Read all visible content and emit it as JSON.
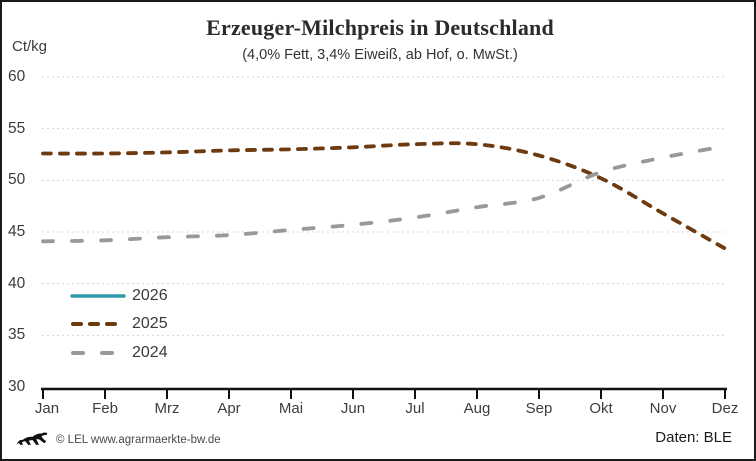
{
  "header": {
    "title": "Erzeuger-Milchpreis in Deutschland",
    "subtitle": "(4,0% Fett, 3,4% Eiweiß, ab Hof, o. MwSt.)",
    "unit_label": "Ct/kg"
  },
  "footer": {
    "copyright": "© LEL www.agrarmaerkte-bw.de",
    "source": "Daten: BLE",
    "logo": "bw-lion-logo"
  },
  "colors": {
    "series_2026": "#2E9BAD",
    "series_2025": "#6E3A0F",
    "series_2024": "#999999",
    "gridline": "#d4d4d4",
    "axis": "#111111",
    "text": "#3d3d3d"
  },
  "chart_data": {
    "type": "line",
    "title": "Erzeuger-Milchpreis in Deutschland",
    "subtitle": "(4,0% Fett, 3,4% Eiweiß, ab Hof, o. MwSt.)",
    "xlabel": "",
    "ylabel": "Ct/kg",
    "ylim": [
      30,
      60
    ],
    "y_ticks": [
      60,
      55,
      50,
      45,
      40,
      35,
      30
    ],
    "grid": "horizontal-dotted",
    "legend_position": "inside-bottom-left",
    "categories": [
      "Jan",
      "Feb",
      "Mrz",
      "Apr",
      "Mai",
      "Jun",
      "Jul",
      "Aug",
      "Sep",
      "Okt",
      "Nov",
      "Dez"
    ],
    "series": [
      {
        "name": "2026",
        "color": "#2E9BAD",
        "style": "solid",
        "values": []
      },
      {
        "name": "2025",
        "color": "#6E3A0F",
        "style": "dashed-short",
        "values": [
          52.6,
          52.6,
          52.7,
          52.9,
          53.0,
          53.2,
          53.5,
          53.5,
          52.4,
          50.2,
          46.8,
          43.4
        ]
      },
      {
        "name": "2024",
        "color": "#999999",
        "style": "dashed-long",
        "values": [
          44.1,
          44.2,
          44.5,
          44.7,
          45.2,
          45.7,
          46.4,
          47.4,
          48.3,
          50.8,
          52.2,
          53.3
        ]
      }
    ]
  }
}
